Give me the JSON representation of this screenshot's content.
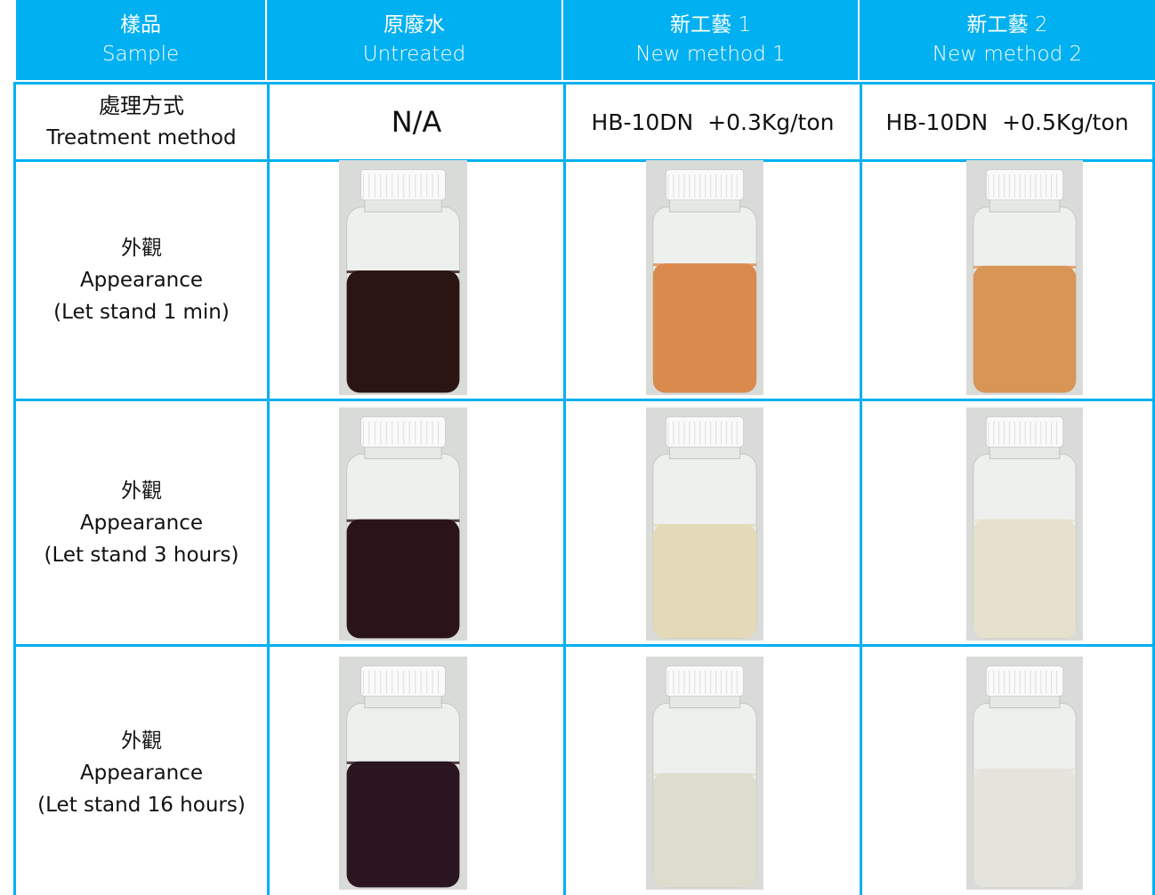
{
  "table": {
    "header": [
      {
        "zh": "樣品",
        "en": "Sample"
      },
      {
        "zh": "原廢水",
        "en": "Untreated"
      },
      {
        "zh": "新工藝 1",
        "en": "New method 1"
      },
      {
        "zh": "新工藝 2",
        "en": "New method 2"
      }
    ],
    "rows": [
      {
        "label": [
          "處理方式",
          "Treatment method"
        ],
        "cells": [
          "N/A",
          "HB-10DN  +0.3Kg/ton",
          "HB-10DN  +0.5Kg/ton"
        ]
      },
      {
        "label": [
          "外觀",
          "Appearance",
          "(Let stand 1 min)"
        ]
      },
      {
        "label": [
          "外觀",
          "Appearance",
          "(Let stand 3 hours)"
        ]
      },
      {
        "label": [
          "外觀",
          "Appearance",
          "(Let stand 16 hours)"
        ]
      }
    ]
  }
}
